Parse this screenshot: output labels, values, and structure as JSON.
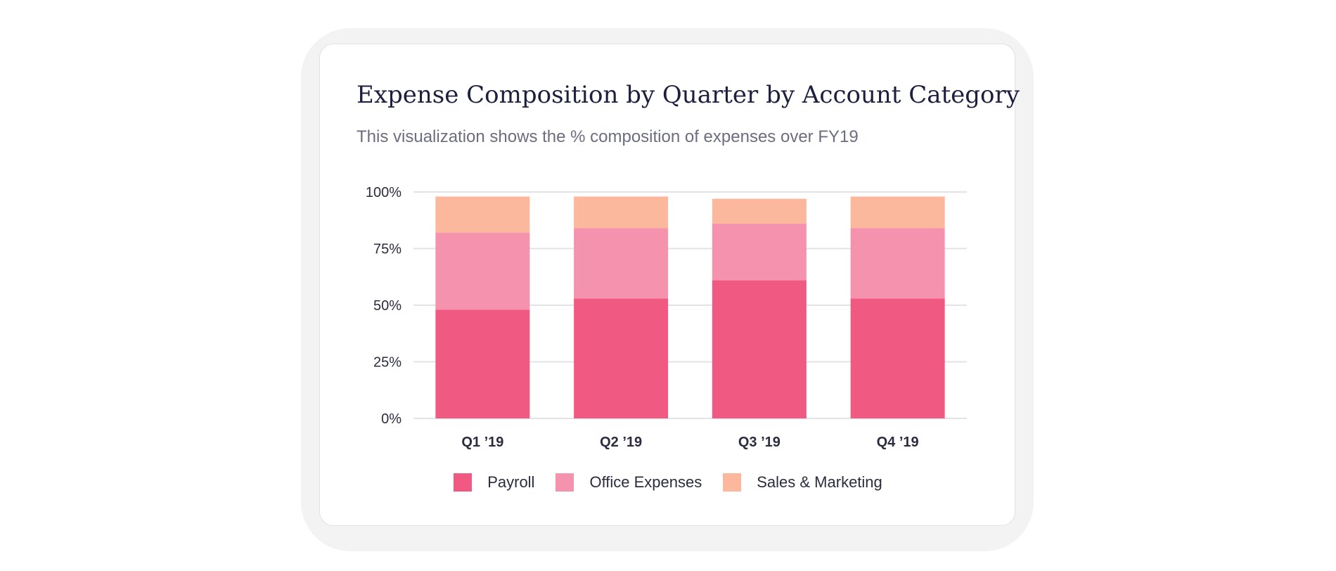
{
  "card": {
    "title": "Expense Composition by Quarter by Account Category",
    "subtitle": "This visualization shows the % composition of expenses over FY19"
  },
  "chart_data": {
    "type": "bar",
    "stacked": true,
    "categories": [
      "Q1 ’19",
      "Q2 ’19",
      "Q3 ’19",
      "Q4 ’19"
    ],
    "series": [
      {
        "name": "Payroll",
        "color": "#f05a82",
        "values": [
          48,
          53,
          61,
          53
        ]
      },
      {
        "name": "Office Expenses",
        "color": "#f593ae",
        "values": [
          34,
          31,
          25,
          31
        ]
      },
      {
        "name": "Sales & Marketing",
        "color": "#fcb89c",
        "values": [
          16,
          14,
          11,
          14
        ]
      }
    ],
    "y_ticks": [
      "0%",
      "25%",
      "50%",
      "75%",
      "100%"
    ],
    "ylim": [
      0,
      100
    ],
    "grid": true,
    "legend_position": "bottom-center"
  }
}
